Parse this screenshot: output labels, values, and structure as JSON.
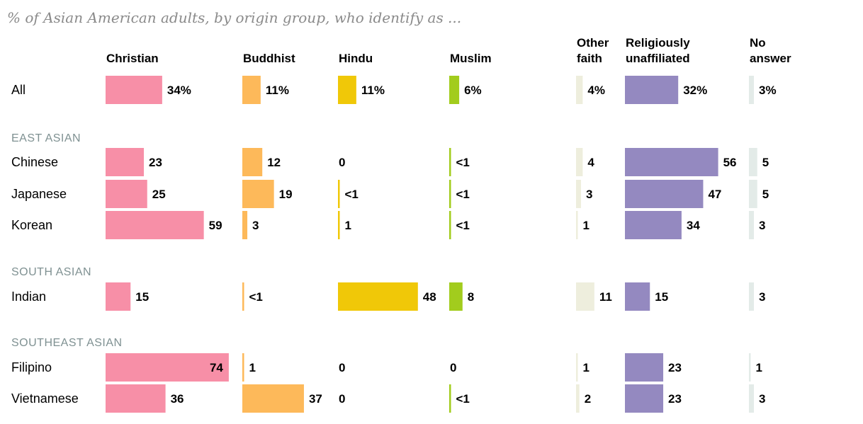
{
  "chart_data": {
    "type": "bar",
    "subtitle": "% of Asian American adults, by origin group, who identify as ...",
    "series": [
      {
        "name": "Christian",
        "label_lines": [
          "Christian"
        ],
        "color": "#f78fa7"
      },
      {
        "name": "Buddhist",
        "label_lines": [
          "Buddhist"
        ],
        "color": "#fdb95a"
      },
      {
        "name": "Hindu",
        "label_lines": [
          "Hindu"
        ],
        "color": "#f0c808"
      },
      {
        "name": "Muslim",
        "label_lines": [
          "Muslim"
        ],
        "color": "#a2cc1d"
      },
      {
        "name": "Other faith",
        "label_lines": [
          "Other",
          "faith"
        ],
        "color": "#eeeedd"
      },
      {
        "name": "Religiously unaffiliated",
        "label_lines": [
          "Religiously",
          "unaffiliated"
        ],
        "color": "#9489c0"
      },
      {
        "name": "No answer",
        "label_lines": [
          "No",
          "answer"
        ],
        "color": "#e3ebe8"
      }
    ],
    "rows": [
      {
        "kind": "row",
        "label": "All",
        "values": [
          34,
          11,
          11,
          6,
          4,
          32,
          3
        ],
        "display": [
          "34%",
          "11%",
          "11%",
          "6%",
          "4%",
          "32%",
          "3%"
        ]
      },
      {
        "kind": "section",
        "label": "EAST ASIAN"
      },
      {
        "kind": "row",
        "label": "Chinese",
        "values": [
          23,
          12,
          0,
          0.5,
          4,
          56,
          5
        ],
        "display": [
          "23",
          "12",
          "0",
          "<1",
          "4",
          "56",
          "5"
        ]
      },
      {
        "kind": "row",
        "label": "Japanese",
        "values": [
          25,
          19,
          0.5,
          0.5,
          3,
          47,
          5
        ],
        "display": [
          "25",
          "19",
          "<1",
          "<1",
          "3",
          "47",
          "5"
        ]
      },
      {
        "kind": "row",
        "label": "Korean",
        "values": [
          59,
          3,
          1,
          0.5,
          1,
          34,
          3
        ],
        "display": [
          "59",
          "3",
          "1",
          "<1",
          "1",
          "34",
          "3"
        ]
      },
      {
        "kind": "section",
        "label": "SOUTH ASIAN"
      },
      {
        "kind": "row",
        "label": "Indian",
        "values": [
          15,
          0.5,
          48,
          8,
          11,
          15,
          3
        ],
        "display": [
          "15",
          "<1",
          "48",
          "8",
          "11",
          "15",
          "3"
        ]
      },
      {
        "kind": "section",
        "label": "SOUTHEAST ASIAN"
      },
      {
        "kind": "row",
        "label": "Filipino",
        "values": [
          74,
          1,
          0,
          0,
          1,
          23,
          1
        ],
        "display": [
          "74",
          "1",
          "0",
          "0",
          "1",
          "23",
          "1"
        ]
      },
      {
        "kind": "row",
        "label": "Vietnamese",
        "values": [
          36,
          37,
          0,
          0.5,
          2,
          23,
          3
        ],
        "display": [
          "36",
          "37",
          "0",
          "<1",
          "2",
          "23",
          "3"
        ]
      }
    ]
  }
}
